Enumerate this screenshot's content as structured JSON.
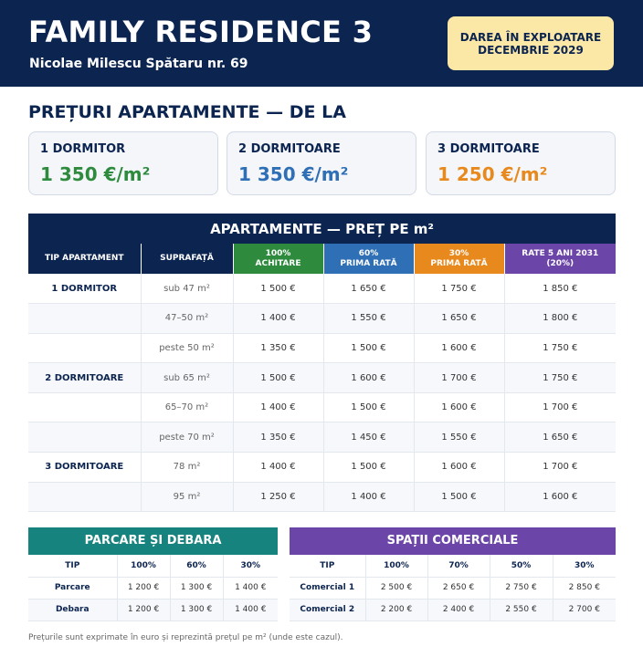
{
  "header": {
    "title": "FAMILY RESIDENCE 3",
    "address": "Nicolae Milescu Spătaru nr. 69",
    "delivery_line1": "DAREA ÎN EXPLOATARE",
    "delivery_line2": "DECEMBRIE 2029"
  },
  "prices_section": {
    "title": "PREȚURI APARTAMENTE — DE LA",
    "cards": [
      {
        "label": "1 DORMITOR",
        "price": "1 350 €/m²",
        "color": "#2e8b3e"
      },
      {
        "label": "2 DORMITOARE",
        "price": "1 350 €/m²",
        "color": "#2f6fb5"
      },
      {
        "label": "3 DORMITOARE",
        "price": "1 250 €/m²",
        "color": "#e8891d"
      }
    ]
  },
  "apartments_table": {
    "title": "APARTAMENTE — PREȚ PE m²",
    "columns": [
      {
        "line1": "TIP APARTAMENT",
        "line2": "",
        "color": "#0c2450"
      },
      {
        "line1": "SUPRAFAȚĂ",
        "line2": "",
        "color": "#0c2450"
      },
      {
        "line1": "100%",
        "line2": "ACHITARE",
        "color": "#2e8b3e"
      },
      {
        "line1": "60%",
        "line2": "PRIMA RATĂ",
        "color": "#2f6fb5"
      },
      {
        "line1": "30%",
        "line2": "PRIMA RATĂ",
        "color": "#e8891d"
      },
      {
        "line1": "RATE 5 ANI 2031",
        "line2": "(20%)",
        "color": "#6c45a8"
      }
    ],
    "rows": [
      {
        "type": "1 DORMITOR",
        "area": "sub 47 m²",
        "p100": "1 500 €",
        "p60": "1 650 €",
        "p30": "1 750 €",
        "rate": "1 850 €"
      },
      {
        "type": "",
        "area": "47–50 m²",
        "p100": "1 400 €",
        "p60": "1 550 €",
        "p30": "1 650 €",
        "rate": "1 800 €"
      },
      {
        "type": "",
        "area": "peste 50 m²",
        "p100": "1 350 €",
        "p60": "1 500 €",
        "p30": "1 600 €",
        "rate": "1 750 €"
      },
      {
        "type": "2 DORMITOARE",
        "area": "sub 65 m²",
        "p100": "1 500 €",
        "p60": "1 600 €",
        "p30": "1 700 €",
        "rate": "1 750 €"
      },
      {
        "type": "",
        "area": "65–70 m²",
        "p100": "1 400 €",
        "p60": "1 500 €",
        "p30": "1 600 €",
        "rate": "1 700 €"
      },
      {
        "type": "",
        "area": "peste 70 m²",
        "p100": "1 350 €",
        "p60": "1 450 €",
        "p30": "1 550 €",
        "rate": "1 650 €"
      },
      {
        "type": "3 DORMITOARE",
        "area": "78 m²",
        "p100": "1 400 €",
        "p60": "1 500 €",
        "p30": "1 600 €",
        "rate": "1 700 €"
      },
      {
        "type": "",
        "area": "95 m²",
        "p100": "1 250 €",
        "p60": "1 400 €",
        "p30": "1 500 €",
        "rate": "1 600 €"
      }
    ]
  },
  "parking_table": {
    "title": "PARCARE ȘI DEBARA",
    "color": "#17837f",
    "headers": [
      "TIP",
      "100%",
      "60%",
      "30%"
    ],
    "rows": [
      [
        "Parcare",
        "1 200 €",
        "1 300 €",
        "1 400 €"
      ],
      [
        "Debara",
        "1 200 €",
        "1 300 €",
        "1 400 €"
      ]
    ]
  },
  "commercial_table": {
    "title": "SPAȚII COMERCIALE",
    "color": "#6c45a8",
    "headers": [
      "TIP",
      "100%",
      "70%",
      "50%",
      "30%"
    ],
    "rows": [
      [
        "Comercial 1",
        "2 500 €",
        "2 650 €",
        "2 750 €",
        "2 850 €"
      ],
      [
        "Comercial 2",
        "2 200 €",
        "2 400 €",
        "2 550 €",
        "2 700 €"
      ]
    ]
  },
  "footnote": "Prețurile sunt exprimate în euro și reprezintă prețul pe m² (unde este cazul)."
}
